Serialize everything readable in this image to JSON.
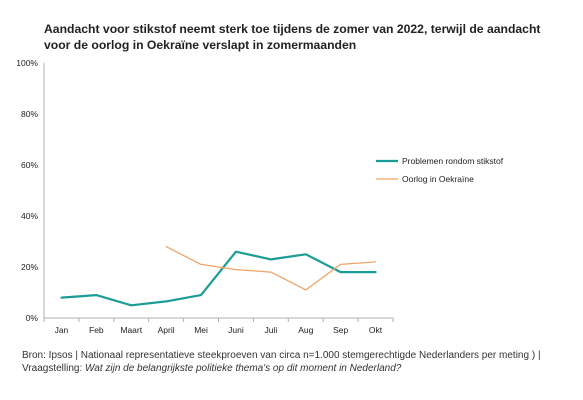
{
  "chart_data": {
    "type": "line",
    "title": "Aandacht voor stikstof neemt sterk toe tijdens de zomer van 2022, terwijl de aandacht voor de oorlog in Oekraïne verslapt in zomermaanden",
    "categories": [
      "Jan",
      "Feb",
      "Maart",
      "April",
      "Mei",
      "Juni",
      "Juli",
      "Aug",
      "Sep",
      "Okt"
    ],
    "y_ticks": [
      "0%",
      "20%",
      "40%",
      "60%",
      "80%",
      "100%"
    ],
    "ylim": [
      0,
      100
    ],
    "grid": false,
    "legend_position": "right",
    "series": [
      {
        "name": "Problemen rondom stikstof",
        "color": "#1a9c97",
        "values": [
          8,
          9,
          5,
          6.5,
          9,
          26,
          23,
          25,
          18,
          18
        ]
      },
      {
        "name": "Oorlog in Oekraïne",
        "color": "#f0a366",
        "values": [
          null,
          null,
          null,
          28,
          21,
          19,
          18,
          11,
          21,
          22
        ]
      }
    ]
  },
  "footnote": {
    "source": "Bron: Ipsos | Nationaal representatieve steekproeven van circa n=1.000 stemgerechtigde Nederlanders per meting ) |",
    "question_prefix": "Vraagstelling: ",
    "question": "Wat zijn de belangrijkste politieke thema's op dit moment in Nederland?"
  }
}
